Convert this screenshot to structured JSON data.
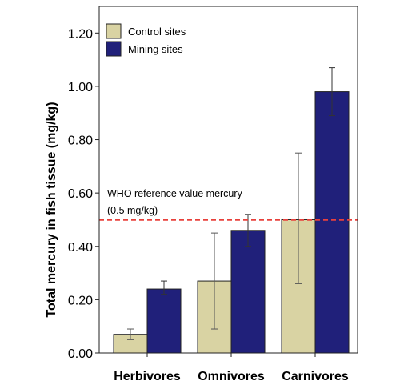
{
  "chart_data": {
    "type": "bar",
    "title": "",
    "xlabel": "",
    "ylabel": "Total mercury in fish tissue (mg/kg)",
    "ylim": [
      0,
      1.3
    ],
    "yticks": [
      "0.00",
      "0.20",
      "0.40",
      "0.60",
      "0.80",
      "1.00",
      "1.20"
    ],
    "categories": [
      "Herbivores",
      "Omnivores",
      "Carnivores"
    ],
    "series": [
      {
        "name": "Control sites",
        "color": "#d9d3a3",
        "values": [
          0.07,
          0.27,
          0.5
        ],
        "err_low": [
          0.05,
          0.09,
          0.26
        ],
        "err_high": [
          0.09,
          0.45,
          0.75
        ]
      },
      {
        "name": "Mining sites",
        "color": "#20207a",
        "values": [
          0.24,
          0.46,
          0.98
        ],
        "err_low": [
          0.22,
          0.4,
          0.89
        ],
        "err_high": [
          0.27,
          0.52,
          1.07
        ]
      }
    ],
    "legend_position": "top-left",
    "grid": false,
    "reference_line": {
      "value": 0.5,
      "color": "#e8413c",
      "label_line1": "WHO reference value mercury",
      "label_line2": "(0.5 mg/kg)"
    }
  }
}
